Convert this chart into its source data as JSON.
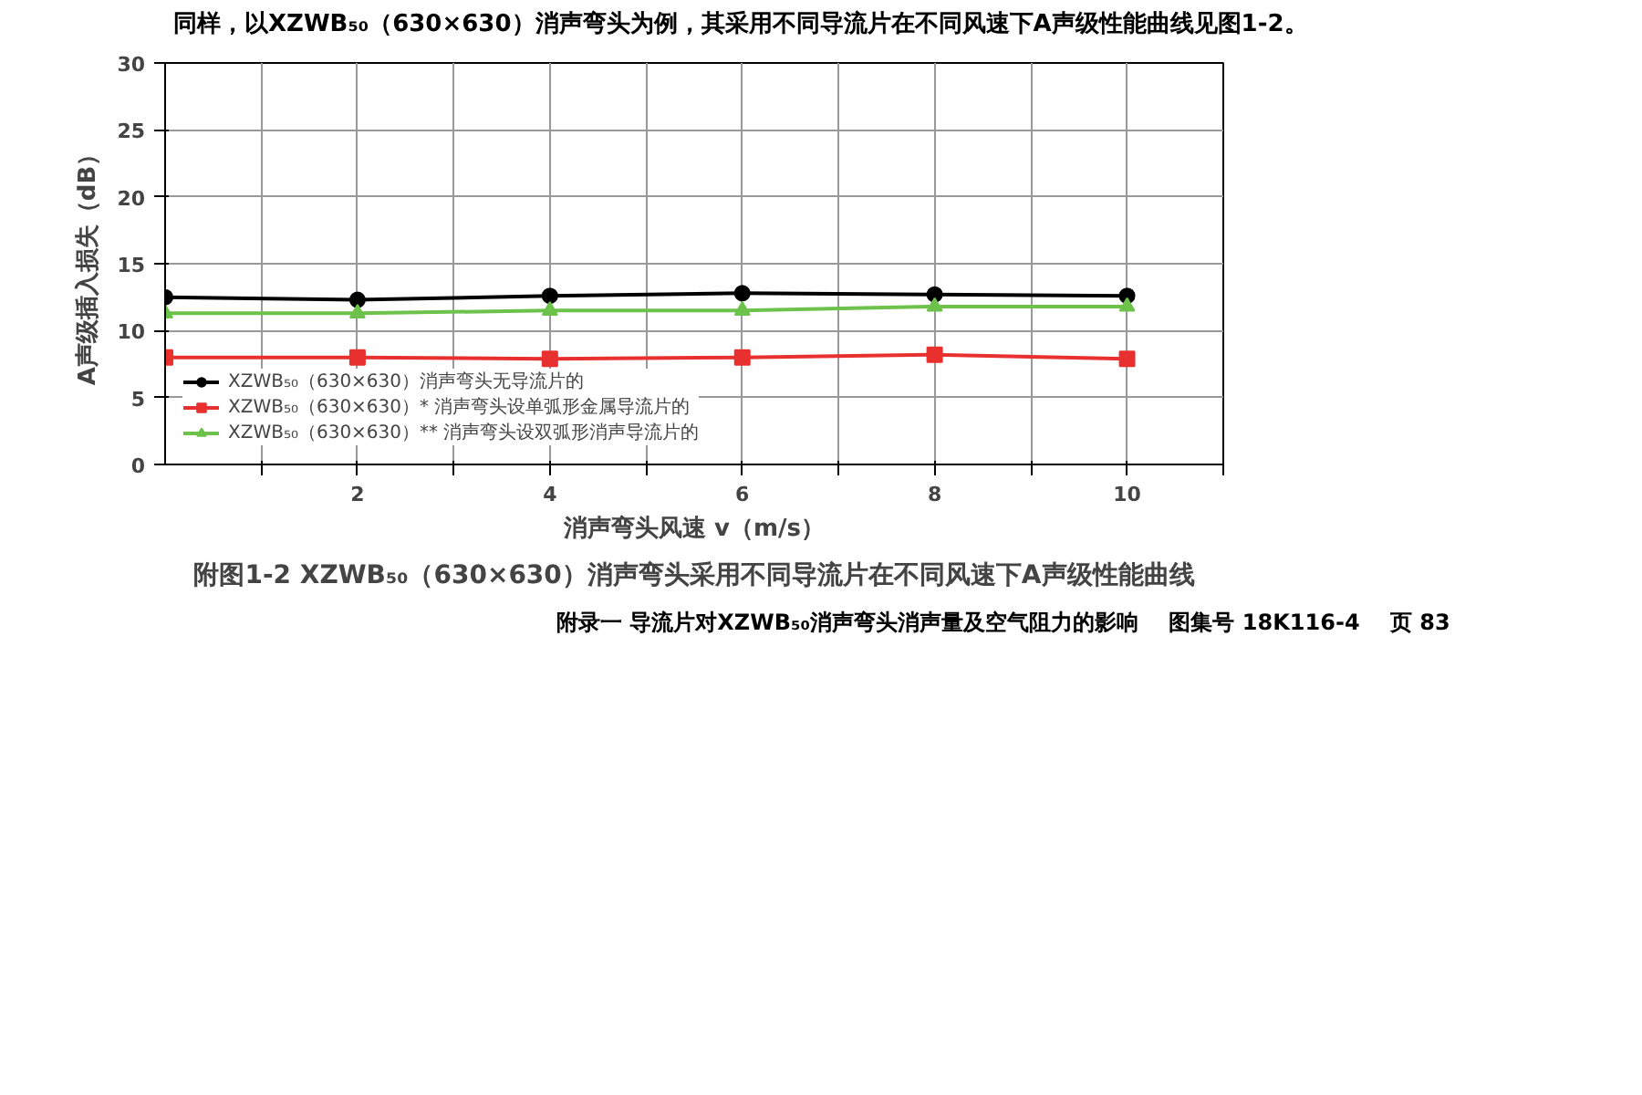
{
  "chart_data": {
    "type": "line",
    "subtitle": "同样，以XZWB₅₀（630×630）消声弯头为例，其采用不同导流片在不同风速下A声级性能曲线见图1-2。",
    "title": "附图1-2 XZWB₅₀（630×630）消声弯头采用不同导流片在不同风速下A声级性能曲线",
    "xlabel": "消声弯头风速 v（m/s）",
    "ylabel": "A声级插入损失（dB）",
    "x": [
      0,
      2,
      4,
      6,
      8,
      10
    ],
    "series": [
      {
        "name": "XZWB₅₀（630×630）消声弯头无导流片的",
        "color": "#000000",
        "marker": "circle",
        "values": [
          12.5,
          12.3,
          12.6,
          12.8,
          12.7,
          12.6
        ]
      },
      {
        "name": "XZWB₅₀（630×630）* 消声弯头设单弧形金属导流片的",
        "color": "#e8312f",
        "marker": "square",
        "values": [
          8.0,
          8.0,
          7.9,
          8.0,
          8.2,
          7.9
        ]
      },
      {
        "name": "XZWB₅₀（630×630）** 消声弯头设双弧形消声导流片的",
        "color": "#6cc24a",
        "marker": "triangle",
        "values": [
          11.3,
          11.3,
          11.5,
          11.5,
          11.8,
          11.8
        ]
      }
    ],
    "xlim": [
      0,
      11
    ],
    "xticks": [
      {
        "value": 1,
        "label": null
      },
      2,
      {
        "value": 3,
        "label": null
      },
      4,
      {
        "value": 5,
        "label": null
      },
      6,
      {
        "value": 7,
        "label": null
      },
      8,
      {
        "value": 9,
        "label": null
      },
      10,
      {
        "value": 11,
        "label": null
      }
    ],
    "ylim": [
      0,
      30
    ],
    "yticks": [
      0,
      5,
      10,
      15,
      20,
      25,
      30
    ],
    "grid": true,
    "legend": "bottom",
    "line_style": "solid",
    "annotations": [
      "附录一 导流片对XZWB₅₀消声弯头消声量及空气阻力的影响",
      "图集号 18K116-4",
      "页 83"
    ]
  }
}
